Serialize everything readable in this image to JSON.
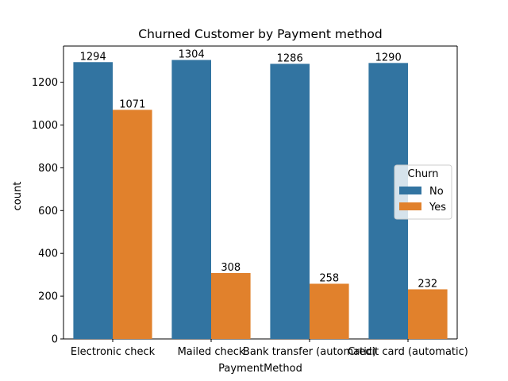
{
  "chart_data": {
    "type": "bar",
    "title": "Churned Customer by Payment method",
    "xlabel": "PaymentMethod",
    "ylabel": "count",
    "categories": [
      "Electronic check",
      "Mailed check",
      "Bank transfer (automatic)",
      "Credit card (automatic)"
    ],
    "series": [
      {
        "name": "No",
        "color": "#3274a1",
        "values": [
          1294,
          1304,
          1286,
          1290
        ]
      },
      {
        "name": "Yes",
        "color": "#e1812c",
        "values": [
          1071,
          308,
          258,
          232
        ]
      }
    ],
    "ylim": [
      0,
      1369.2
    ],
    "yticks": [
      0,
      200,
      400,
      600,
      800,
      1000,
      1200
    ],
    "legend": {
      "title": "Churn",
      "position": "center-right"
    },
    "grid": false
  }
}
